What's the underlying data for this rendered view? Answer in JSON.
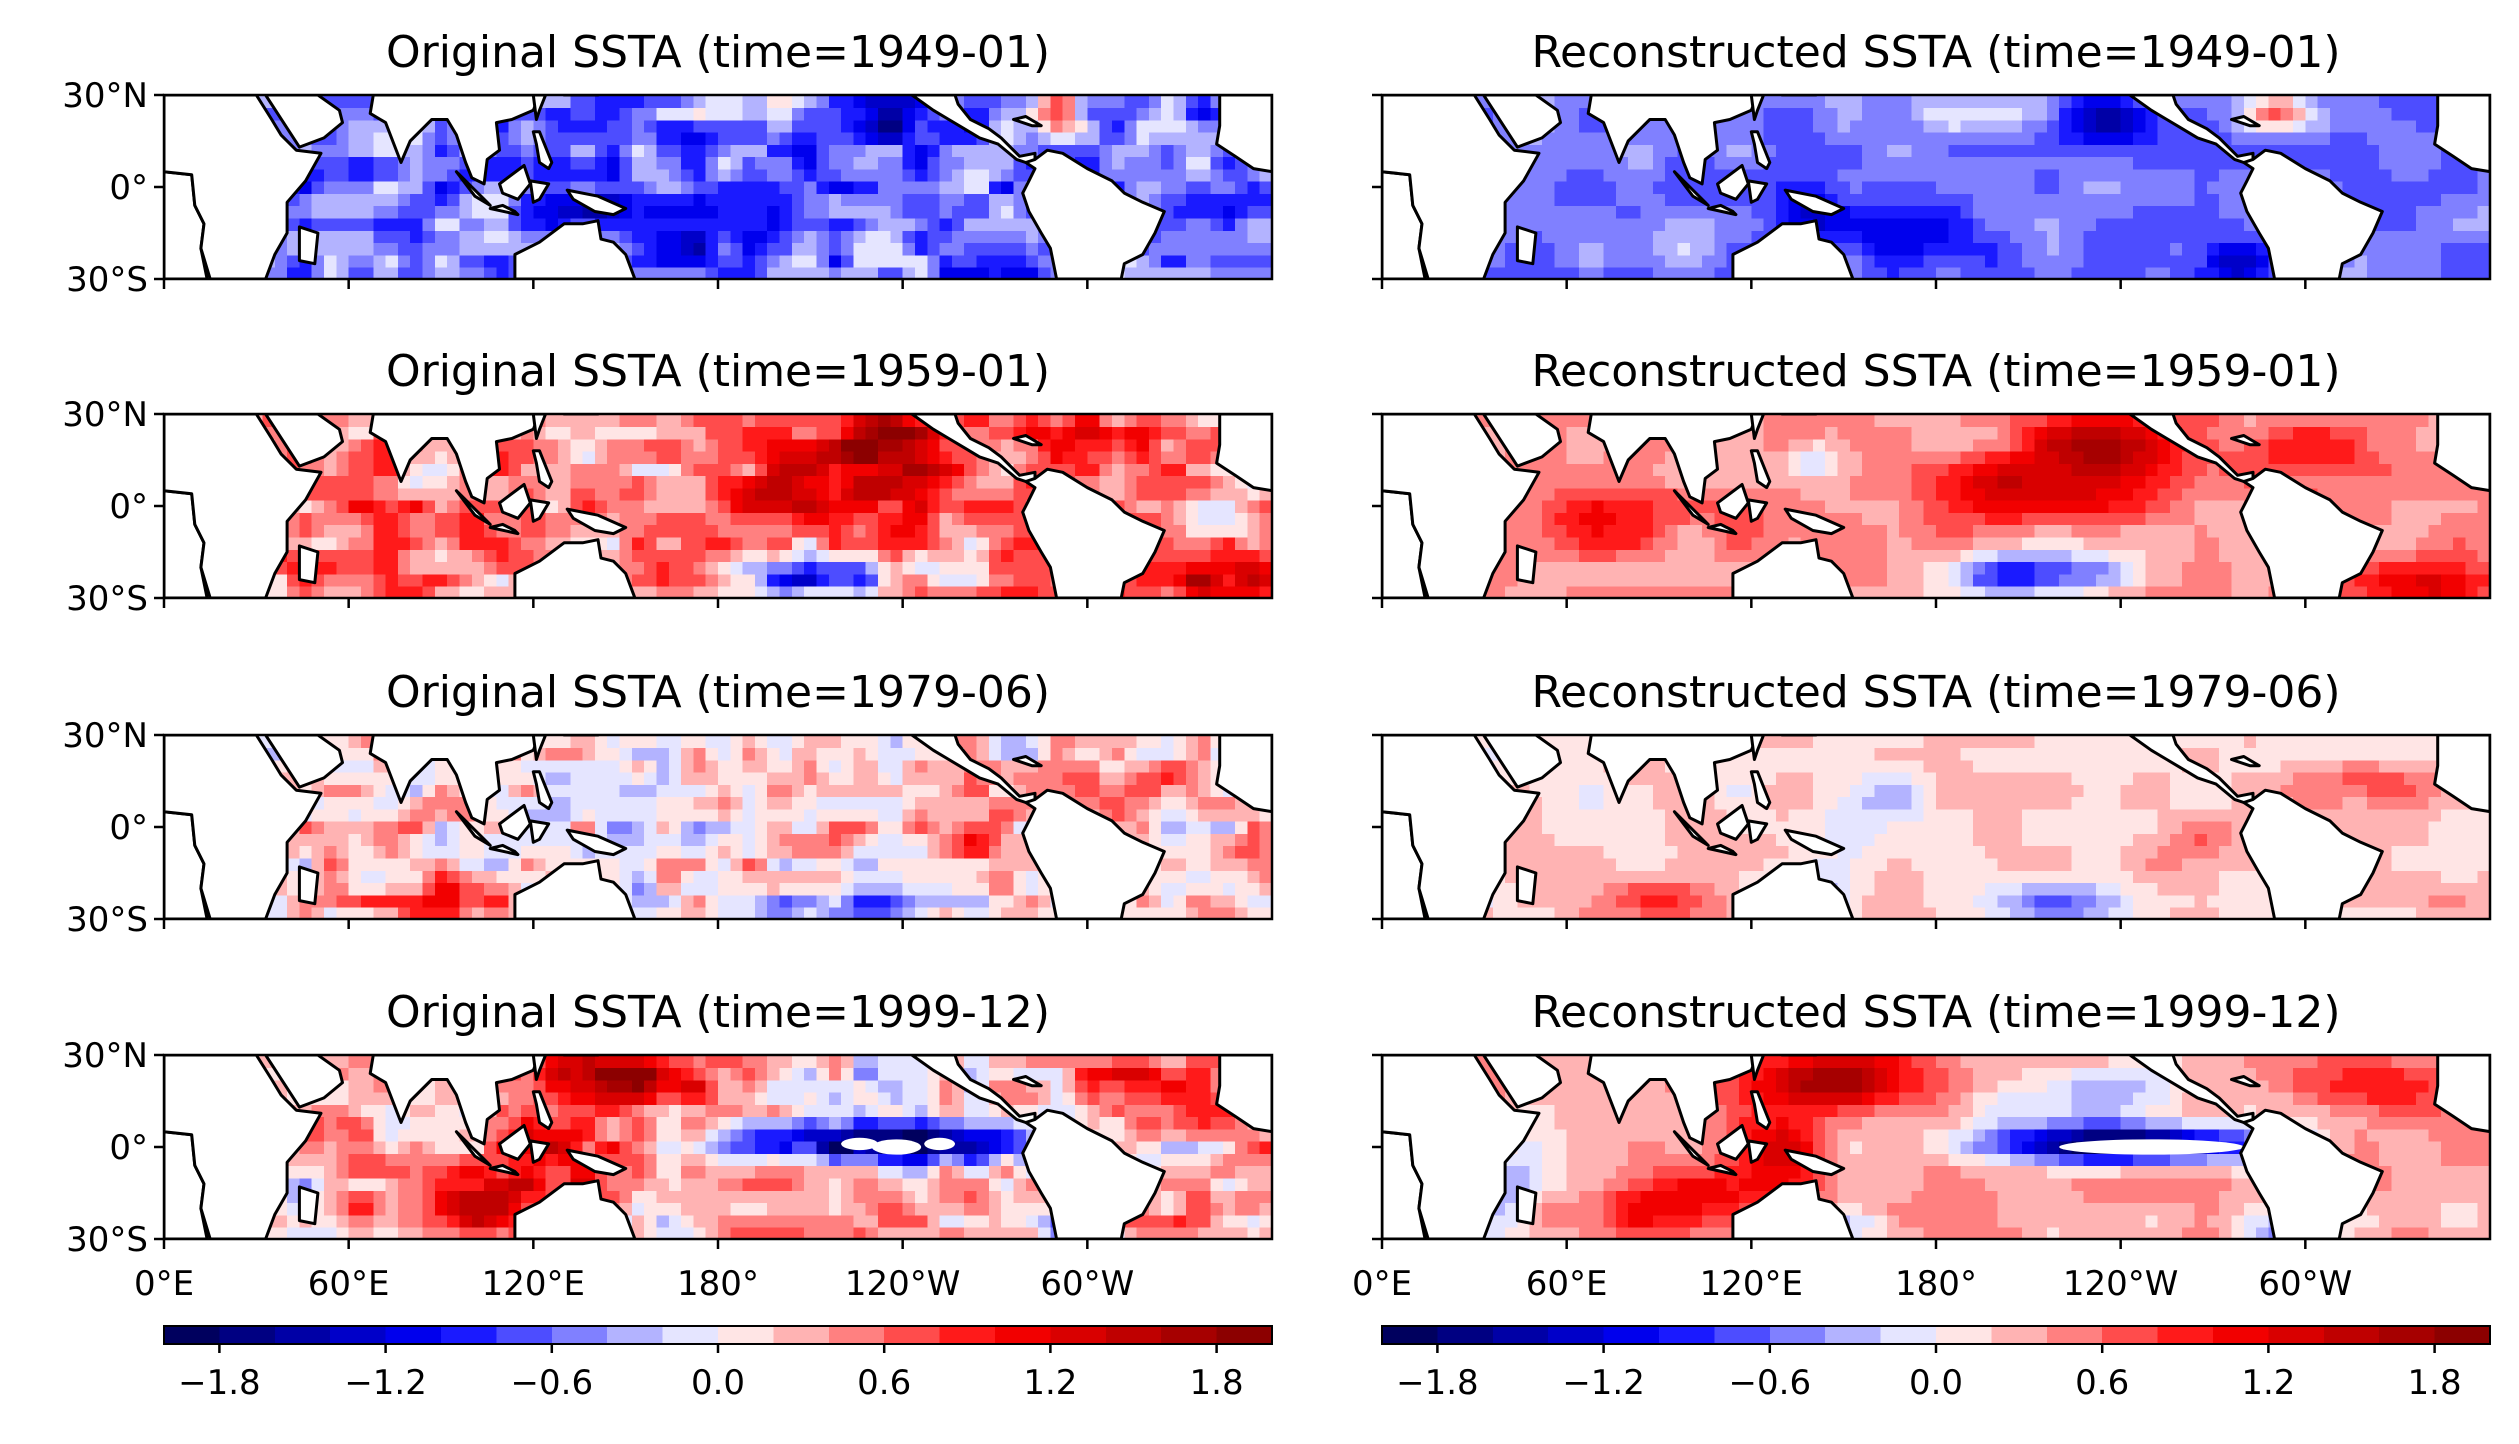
{
  "chart_data": {
    "type": "heatmap",
    "variable": "SSTA",
    "colormap": "seismic",
    "panels": [
      {
        "title": "Original SSTA (time=1949-01)",
        "kind": "original",
        "time": "1949-01",
        "pattern": "weak-la-nina"
      },
      {
        "title": "Reconstructed SSTA (time=1949-01)",
        "kind": "reconstructed",
        "time": "1949-01",
        "pattern": "weak-la-nina"
      },
      {
        "title": "Original SSTA (time=1959-01)",
        "kind": "original",
        "time": "1959-01",
        "pattern": "warm-east-pacific"
      },
      {
        "title": "Reconstructed SSTA (time=1959-01)",
        "kind": "reconstructed",
        "time": "1959-01",
        "pattern": "warm-east-pacific"
      },
      {
        "title": "Original SSTA (time=1979-06)",
        "kind": "original",
        "time": "1979-06",
        "pattern": "near-neutral"
      },
      {
        "title": "Reconstructed SSTA (time=1979-06)",
        "kind": "reconstructed",
        "time": "1979-06",
        "pattern": "near-neutral"
      },
      {
        "title": "Original SSTA (time=1999-12)",
        "kind": "original",
        "time": "1999-12",
        "pattern": "strong-la-nina"
      },
      {
        "title": "Reconstructed SSTA (time=1999-12)",
        "kind": "reconstructed",
        "time": "1999-12",
        "pattern": "strong-la-nina"
      }
    ],
    "lat_range": [
      -30,
      30
    ],
    "lon_range": [
      0,
      360
    ],
    "lat_ticks": [
      "30°N",
      "0°",
      "30°S"
    ],
    "lat_tick_values": [
      30,
      0,
      -30
    ],
    "lon_ticks": [
      "0°E",
      "60°E",
      "120°E",
      "180°",
      "120°W",
      "60°W"
    ],
    "lon_tick_values": [
      0,
      60,
      120,
      180,
      240,
      300
    ],
    "colorbar": {
      "range": [
        -2.0,
        2.0
      ],
      "levels": 20,
      "tick_labels": [
        "−1.8",
        "−1.2",
        "−0.6",
        "0.0",
        "0.6",
        "1.2",
        "1.8"
      ],
      "tick_values": [
        -1.8,
        -1.2,
        -0.6,
        0.0,
        0.6,
        1.2,
        1.8
      ]
    }
  }
}
